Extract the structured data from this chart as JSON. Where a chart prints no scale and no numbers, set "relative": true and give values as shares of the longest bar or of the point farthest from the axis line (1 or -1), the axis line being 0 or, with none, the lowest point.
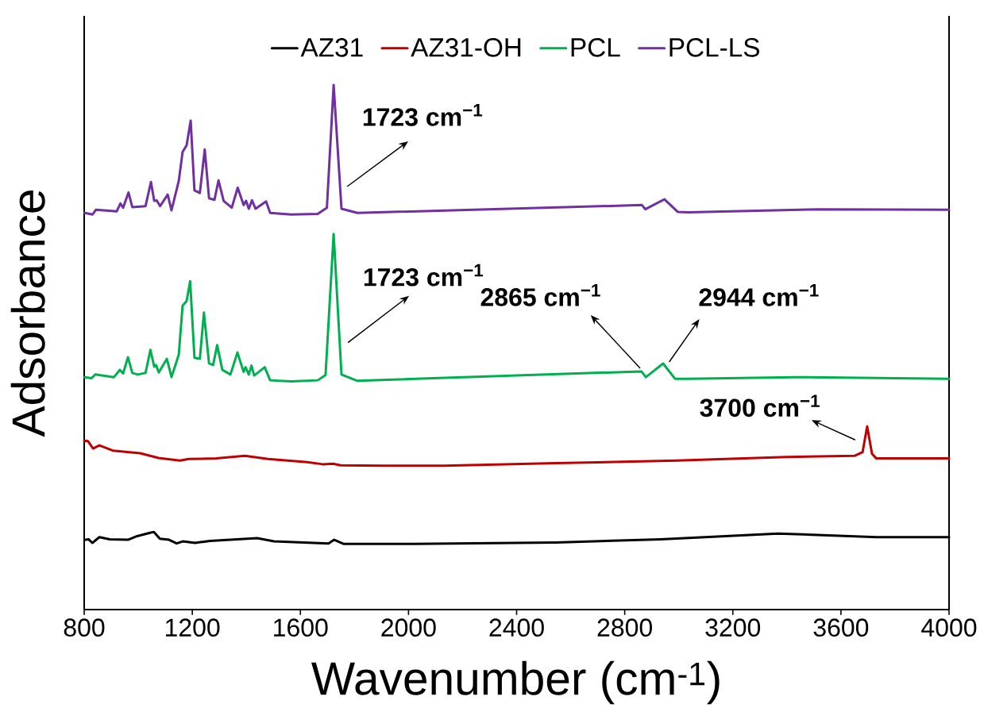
{
  "chart_data": {
    "type": "line",
    "relative": true,
    "xlabel": "Wavenumber (cm$^{-1}$)",
    "ylabel": "Adsorbance",
    "xlim": [
      800,
      4000
    ],
    "xticks": [
      800,
      1200,
      1600,
      2000,
      2400,
      2800,
      3200,
      3600,
      4000
    ],
    "legend": "top",
    "series": [
      {
        "name": "AZ31",
        "color": "#000000",
        "x": [
          805,
          816,
          830,
          856,
          895,
          962,
          996,
          1041,
          1058,
          1080,
          1114,
          1142,
          1165,
          1210,
          1266,
          1440,
          1502,
          1704,
          1725,
          1761,
          2020,
          2545,
          2932,
          3367,
          3731,
          4000
        ],
        "values": [
          0.133,
          0.134,
          0.127,
          0.138,
          0.134,
          0.133,
          0.14,
          0.146,
          0.148,
          0.135,
          0.133,
          0.126,
          0.13,
          0.127,
          0.131,
          0.136,
          0.13,
          0.126,
          0.133,
          0.125,
          0.125,
          0.128,
          0.134,
          0.145,
          0.138,
          0.138
        ]
      },
      {
        "name": "AZ31-OH",
        "color": "#c00000",
        "x": [
          800,
          814,
          833,
          856,
          906,
          1007,
          1075,
          1154,
          1187,
          1288,
          1395,
          1480,
          1626,
          1682,
          1721,
          1749,
          1907,
          2132,
          2545,
          2993,
          3398,
          3650,
          3680,
          3697,
          3715,
          3731,
          4000
        ],
        "values": [
          0.322,
          0.321,
          0.307,
          0.313,
          0.303,
          0.298,
          0.289,
          0.284,
          0.287,
          0.288,
          0.293,
          0.287,
          0.281,
          0.277,
          0.278,
          0.275,
          0.274,
          0.274,
          0.279,
          0.284,
          0.291,
          0.293,
          0.3,
          0.349,
          0.297,
          0.288,
          0.288
        ]
      },
      {
        "name": "PCL",
        "color": "#00b050",
        "x": [
          802,
          827,
          841,
          910,
          932,
          944,
          962,
          978,
          998,
          1027,
          1045,
          1059,
          1066,
          1076,
          1106,
          1123,
          1150,
          1164,
          1179,
          1192,
          1208,
          1228,
          1243,
          1262,
          1277,
          1292,
          1311,
          1341,
          1367,
          1390,
          1397,
          1409,
          1419,
          1429,
          1468,
          1488,
          1566,
          1664,
          1693,
          1723,
          1752,
          1811,
          2862,
          2878,
          2898,
          2942,
          2986,
          3035,
          3427,
          4000
        ],
        "values": [
          0.443,
          0.441,
          0.448,
          0.443,
          0.457,
          0.45,
          0.481,
          0.451,
          0.448,
          0.451,
          0.495,
          0.463,
          0.466,
          0.452,
          0.478,
          0.443,
          0.486,
          0.579,
          0.588,
          0.626,
          0.48,
          0.478,
          0.566,
          0.469,
          0.466,
          0.504,
          0.457,
          0.448,
          0.49,
          0.453,
          0.462,
          0.448,
          0.465,
          0.446,
          0.462,
          0.437,
          0.435,
          0.437,
          0.447,
          0.716,
          0.448,
          0.436,
          0.454,
          0.443,
          0.451,
          0.469,
          0.44,
          0.44,
          0.443,
          0.44
        ]
      },
      {
        "name": "PCL-LS",
        "color": "#7030a0",
        "x": [
          802,
          831,
          843,
          920,
          934,
          944,
          964,
          978,
          1027,
          1047,
          1059,
          1068,
          1081,
          1109,
          1123,
          1150,
          1164,
          1179,
          1194,
          1208,
          1228,
          1246,
          1262,
          1282,
          1297,
          1316,
          1346,
          1368,
          1390,
          1399,
          1409,
          1421,
          1434,
          1473,
          1488,
          1566,
          1664,
          1698,
          1723,
          1752,
          1811,
          2864,
          2876,
          2947,
          2996,
          3035,
          3524,
          4000
        ],
        "values": [
          0.756,
          0.753,
          0.762,
          0.759,
          0.774,
          0.766,
          0.795,
          0.767,
          0.769,
          0.815,
          0.779,
          0.78,
          0.769,
          0.791,
          0.761,
          0.817,
          0.872,
          0.885,
          0.932,
          0.799,
          0.794,
          0.877,
          0.784,
          0.781,
          0.818,
          0.779,
          0.766,
          0.804,
          0.771,
          0.779,
          0.764,
          0.78,
          0.764,
          0.778,
          0.756,
          0.753,
          0.754,
          0.766,
          1.0,
          0.764,
          0.756,
          0.771,
          0.763,
          0.782,
          0.758,
          0.757,
          0.763,
          0.762
        ]
      }
    ],
    "annotations": [
      {
        "text": "1723 cm$^{−1}$",
        "x": 1723,
        "y": 1.0
      },
      {
        "text": "1723 cm$^{−1}$",
        "x": 1723,
        "y": 0.716
      },
      {
        "text": "2865 cm$^{−1}$",
        "x": 2865,
        "y": 0.454
      },
      {
        "text": "2944 cm$^{−1}$",
        "x": 2944,
        "y": 0.469
      },
      {
        "text": "3700 cm$^{−1}$",
        "x": 3700,
        "y": 0.349
      }
    ]
  }
}
